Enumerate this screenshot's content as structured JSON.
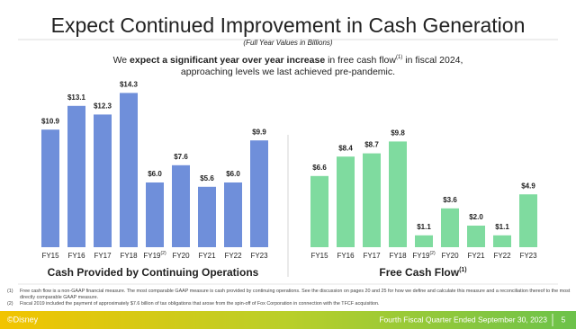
{
  "title": "Expect Continued Improvement in Cash Generation",
  "subtitle": "(Full Year Values in Billions)",
  "body": {
    "line1": [
      "We ",
      "expect a significant year over year increase",
      " in free cash flow",
      "(1)",
      " in fiscal 2024,"
    ],
    "line2": "approaching levels we last achieved pre-pandemic."
  },
  "chart_data": [
    {
      "type": "bar",
      "title": "Cash Provided by Continuing Operations",
      "categories": [
        "FY15",
        "FY16",
        "FY17",
        "FY18",
        "FY19",
        "FY20",
        "FY21",
        "FY22",
        "FY23"
      ],
      "category_superscripts": [
        null,
        null,
        null,
        null,
        "(2)",
        null,
        null,
        null,
        null
      ],
      "values": [
        10.9,
        13.1,
        12.3,
        14.3,
        6.0,
        7.6,
        5.6,
        6.0,
        9.9
      ],
      "value_labels": [
        "$10.9",
        "$13.1",
        "$12.3",
        "$14.3",
        "$6.0",
        "$7.6",
        "$5.6",
        "$6.0",
        "$9.9"
      ],
      "color": "#6f8fda",
      "ylim": [
        0,
        16
      ]
    },
    {
      "type": "bar",
      "title": "Free Cash Flow",
      "title_superscript": "(1)",
      "categories": [
        "FY15",
        "FY16",
        "FY17",
        "FY18",
        "FY19",
        "FY20",
        "FY21",
        "FY22",
        "FY23"
      ],
      "category_superscripts": [
        null,
        null,
        null,
        null,
        "(2)",
        null,
        null,
        null,
        null
      ],
      "values": [
        6.6,
        8.4,
        8.7,
        9.8,
        1.1,
        3.6,
        2.0,
        1.1,
        4.9
      ],
      "value_labels": [
        "$6.6",
        "$8.4",
        "$8.7",
        "$9.8",
        "$1.1",
        "$3.6",
        "$2.0",
        "$1.1",
        "$4.9"
      ],
      "color": "#7fdb9f",
      "ylim": [
        0,
        16
      ]
    }
  ],
  "footnotes": [
    {
      "marker": "(1)",
      "text": "Free cash flow is a non-GAAP financial measure. The most comparable GAAP measure is cash provided by continuing operations. See the discussion on pages 20 and 25 for how we define and calculate this measure and a reconciliation thereof to the most directly comparable GAAP measure."
    },
    {
      "marker": "(2)",
      "text": "Fiscal 2019 included the payment of approximately $7.6 billion of tax obligations that arose from the spin-off of Fox Corporation in connection with the TFCF acquisition."
    }
  ],
  "footer": {
    "brand": "©Disney",
    "text": "Fourth Fiscal Quarter Ended September 30, 2023",
    "page": "5"
  }
}
